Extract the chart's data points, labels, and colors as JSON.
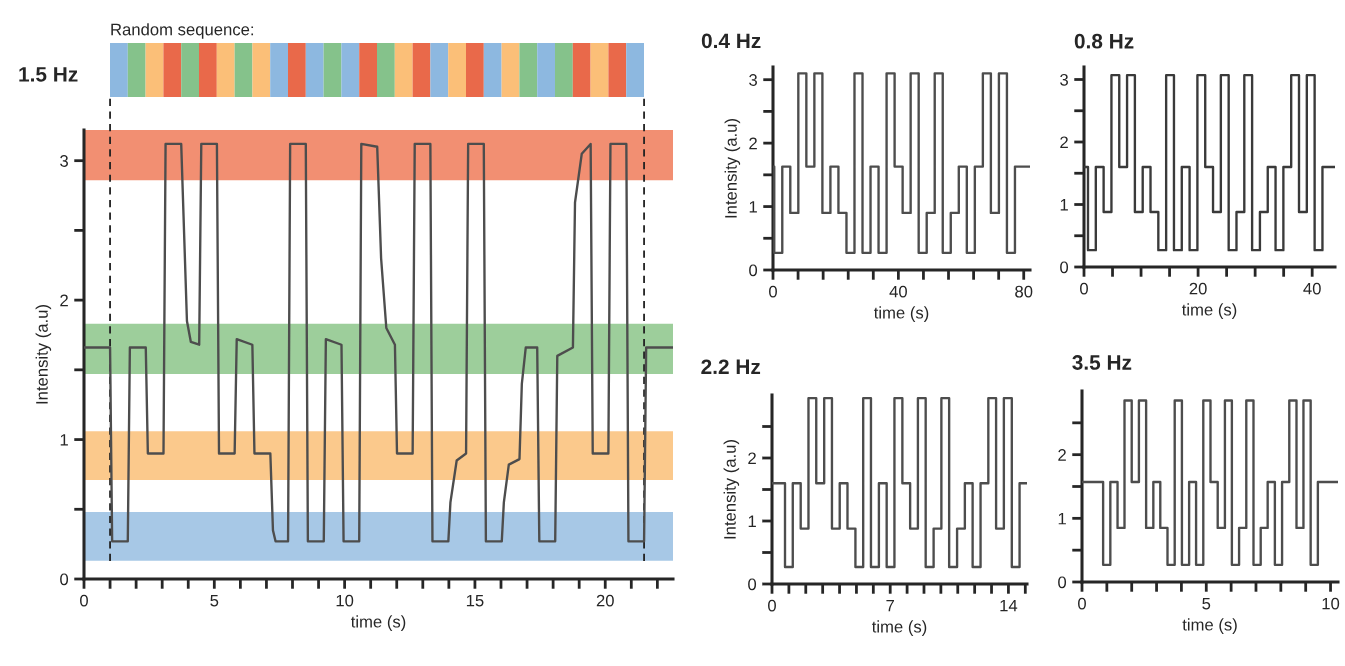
{
  "chart_data": [
    {
      "type": "line",
      "title": "1.5 Hz",
      "xlabel": "time (s)",
      "ylabel": "Intensity (a.u)",
      "annotations": [
        "Random sequence:"
      ],
      "xlim": [
        0,
        22.6
      ],
      "ylim": [
        0,
        3.22
      ],
      "xticks": [
        0,
        {
          "value": 1,
          "label": null
        },
        {
          "value": 2,
          "label": null
        },
        {
          "value": 3,
          "label": null
        },
        {
          "value": 4,
          "label": null
        },
        5,
        {
          "value": 6,
          "label": null
        },
        {
          "value": 7,
          "label": null
        },
        {
          "value": 8,
          "label": null
        },
        {
          "value": 9,
          "label": null
        },
        10,
        {
          "value": 11,
          "label": null
        },
        {
          "value": 12,
          "label": null
        },
        {
          "value": 13,
          "label": null
        },
        {
          "value": 14,
          "label": null
        },
        15,
        {
          "value": 16,
          "label": null
        },
        {
          "value": 17,
          "label": null
        },
        {
          "value": 18,
          "label": null
        },
        {
          "value": 19,
          "label": null
        },
        20,
        {
          "value": 21,
          "label": null
        },
        {
          "value": 22,
          "label": null
        }
      ],
      "yticks": [
        0,
        {
          "value": 0.5,
          "label": null
        },
        1,
        {
          "value": 1.5,
          "label": null
        },
        2,
        {
          "value": 2.5,
          "label": null
        },
        3
      ],
      "bands": [
        {
          "axis": "y",
          "from": 2.86,
          "to": 3.22,
          "color": "#f28f72"
        },
        {
          "axis": "y",
          "from": 1.47,
          "to": 1.83,
          "color": "#9dce9b"
        },
        {
          "axis": "y",
          "from": 0.71,
          "to": 1.06,
          "color": "#fbc98c"
        },
        {
          "axis": "y",
          "from": 0.13,
          "to": 0.48,
          "color": "#a7c8e6"
        }
      ],
      "ref_lines": [
        {
          "axis": "x",
          "value": 1.0,
          "color": "#222222",
          "line_style": "dashed"
        },
        {
          "axis": "x",
          "value": 21.49,
          "color": "#222222",
          "line_style": "dashed"
        }
      ],
      "series": [
        {
          "color": "#4d4d4d",
          "x": [
            0,
            1.0,
            1.08,
            1.68,
            1.76,
            2.37,
            2.45,
            3.05,
            3.13,
            3.73,
            3.82,
            3.95,
            4.1,
            4.42,
            4.5,
            5.1,
            5.18,
            5.78,
            5.86,
            6.46,
            6.54,
            7.15,
            7.25,
            7.35,
            7.83,
            7.91,
            8.51,
            8.59,
            9.2,
            9.28,
            9.88,
            9.96,
            10.56,
            10.64,
            11.25,
            11.4,
            11.6,
            11.93,
            12.01,
            12.61,
            12.69,
            13.29,
            13.37,
            13.98,
            14.06,
            14.3,
            14.66,
            14.74,
            15.34,
            15.42,
            16.03,
            16.11,
            16.3,
            16.71,
            16.8,
            16.95,
            17.39,
            17.47,
            18.08,
            18.16,
            18.76,
            18.84,
            19.1,
            19.44,
            19.52,
            20.12,
            20.2,
            20.81,
            20.89,
            21.49,
            21.57,
            22.6
          ],
          "values": [
            1.66,
            1.66,
            0.27,
            0.27,
            1.66,
            1.66,
            0.9,
            0.9,
            3.12,
            3.12,
            2.6,
            1.85,
            1.7,
            1.68,
            3.12,
            3.12,
            0.9,
            0.9,
            1.72,
            1.68,
            0.9,
            0.9,
            0.35,
            0.27,
            0.27,
            3.12,
            3.12,
            0.27,
            0.27,
            1.72,
            1.68,
            0.27,
            0.27,
            3.12,
            3.1,
            2.3,
            1.8,
            1.68,
            0.9,
            0.9,
            3.12,
            3.12,
            0.27,
            0.27,
            0.55,
            0.85,
            0.9,
            3.12,
            3.12,
            0.27,
            0.27,
            0.55,
            0.82,
            0.86,
            1.4,
            1.66,
            1.66,
            0.27,
            0.27,
            1.6,
            1.66,
            2.7,
            3.05,
            3.12,
            0.9,
            0.9,
            3.12,
            3.12,
            0.27,
            0.27,
            1.66,
            1.66
          ]
        }
      ]
    },
    {
      "type": "step",
      "title": "0.4 Hz",
      "xlabel": "time (s)",
      "ylabel": "Intensity (a.u)",
      "xlim": [
        0,
        82
      ],
      "ylim": [
        0,
        3.2
      ],
      "xticks": [
        0,
        {
          "value": 8,
          "label": null
        },
        {
          "value": 16,
          "label": null
        },
        {
          "value": 24,
          "label": null
        },
        {
          "value": 32,
          "label": null
        },
        40,
        {
          "value": 48,
          "label": null
        },
        {
          "value": 56,
          "label": null
        },
        {
          "value": 64,
          "label": null
        },
        {
          "value": 72,
          "label": null
        },
        80
      ],
      "yticks": [
        0,
        {
          "value": 0.5,
          "label": null
        },
        1,
        {
          "value": 1.5,
          "label": null
        },
        2,
        {
          "value": 2.5,
          "label": null
        },
        3
      ],
      "series": [
        {
          "color": "#4d4d4d",
          "x": [
            0,
            0.4,
            2.96,
            5.52,
            8.08,
            10.64,
            13.2,
            15.76,
            18.32,
            20.88,
            23.44,
            26.0,
            28.56,
            31.12,
            33.68,
            36.24,
            38.8,
            41.36,
            43.92,
            46.48,
            49.04,
            51.6,
            54.16,
            56.72,
            59.28,
            61.84,
            64.4,
            66.96,
            69.52,
            72.08,
            74.64,
            77.2,
            82
          ],
          "values": [
            1.63,
            0.27,
            1.63,
            0.9,
            3.1,
            1.63,
            3.1,
            0.9,
            1.63,
            0.9,
            0.27,
            3.1,
            0.27,
            1.63,
            0.27,
            3.1,
            1.63,
            0.9,
            3.1,
            0.27,
            0.9,
            3.1,
            0.27,
            0.9,
            1.63,
            0.27,
            1.63,
            3.1,
            0.9,
            3.1,
            0.27,
            1.63,
            1.63
          ]
        }
      ]
    },
    {
      "type": "step",
      "title": "0.8 Hz",
      "xlabel": "time (s)",
      "xlim": [
        0,
        44
      ],
      "ylim": [
        0,
        3.2
      ],
      "xticks": [
        0,
        {
          "value": 5,
          "label": null
        },
        {
          "value": 10,
          "label": null
        },
        {
          "value": 15,
          "label": null
        },
        20,
        {
          "value": 25,
          "label": null
        },
        {
          "value": 30,
          "label": null
        },
        {
          "value": 35,
          "label": null
        },
        40
      ],
      "yticks": [
        0,
        {
          "value": 0.5,
          "label": null
        },
        1,
        {
          "value": 1.5,
          "label": null
        },
        2,
        {
          "value": 2.5,
          "label": null
        },
        3
      ],
      "series": [
        {
          "color": "#3a3a3a",
          "x": [
            0,
            0.7,
            2.07,
            3.44,
            4.81,
            6.18,
            7.55,
            8.92,
            10.29,
            11.66,
            13.03,
            14.4,
            15.77,
            17.14,
            18.51,
            19.88,
            21.25,
            22.62,
            23.99,
            25.36,
            26.73,
            28.1,
            29.47,
            30.84,
            32.21,
            33.58,
            34.95,
            36.32,
            37.69,
            39.06,
            40.43,
            41.8,
            44
          ],
          "values": [
            1.6,
            0.27,
            1.6,
            0.88,
            3.07,
            1.6,
            3.07,
            0.88,
            1.6,
            0.88,
            0.27,
            3.07,
            0.27,
            1.6,
            0.27,
            3.07,
            1.6,
            0.88,
            3.07,
            0.27,
            0.88,
            3.07,
            0.27,
            0.88,
            1.6,
            0.27,
            1.6,
            3.07,
            0.88,
            3.07,
            0.27,
            1.6,
            1.6
          ]
        }
      ]
    },
    {
      "type": "step",
      "title": "2.2 Hz",
      "xlabel": "time (s)",
      "ylabel": "Intensity (a.u)",
      "xlim": [
        0,
        15.1
      ],
      "ylim": [
        0,
        3.0
      ],
      "xticks": [
        0,
        {
          "value": 1,
          "label": null
        },
        {
          "value": 2,
          "label": null
        },
        {
          "value": 3,
          "label": null
        },
        {
          "value": 4,
          "label": null
        },
        {
          "value": 5,
          "label": null
        },
        {
          "value": 6,
          "label": null
        },
        7,
        {
          "value": 8,
          "label": null
        },
        {
          "value": 9,
          "label": null
        },
        {
          "value": 10,
          "label": null
        },
        {
          "value": 11,
          "label": null
        },
        {
          "value": 12,
          "label": null
        },
        {
          "value": 13,
          "label": null
        },
        14,
        {
          "value": 15,
          "label": null
        }
      ],
      "yticks": [
        0,
        {
          "value": 0.5,
          "label": null
        },
        1,
        {
          "value": 1.5,
          "label": null
        },
        2,
        {
          "value": 2.5,
          "label": null
        }
      ],
      "series": [
        {
          "color": "#4d4d4d",
          "x": [
            0,
            0.77,
            1.23,
            1.7,
            2.16,
            2.62,
            3.09,
            3.55,
            4.01,
            4.47,
            4.94,
            5.4,
            5.86,
            6.33,
            6.79,
            7.25,
            7.72,
            8.18,
            8.64,
            9.1,
            9.57,
            10.03,
            10.49,
            10.96,
            11.42,
            11.88,
            12.35,
            12.81,
            13.27,
            13.73,
            14.2,
            14.66,
            15.1
          ],
          "values": [
            1.6,
            0.27,
            1.6,
            0.88,
            2.95,
            1.6,
            2.95,
            0.88,
            1.6,
            0.88,
            0.27,
            2.95,
            0.27,
            1.6,
            0.27,
            2.95,
            1.6,
            0.88,
            2.95,
            0.27,
            0.88,
            2.95,
            0.27,
            0.88,
            1.6,
            0.27,
            1.6,
            2.95,
            0.88,
            2.95,
            0.27,
            1.6,
            1.6
          ]
        }
      ]
    },
    {
      "type": "step",
      "title": "3.5 Hz",
      "xlabel": "time (s)",
      "xlim": [
        0,
        10.3
      ],
      "ylim": [
        0,
        3.0
      ],
      "xticks": [
        0,
        {
          "value": 1,
          "label": null
        },
        {
          "value": 2,
          "label": null
        },
        {
          "value": 3,
          "label": null
        },
        {
          "value": 4,
          "label": null
        },
        5,
        {
          "value": 6,
          "label": null
        },
        {
          "value": 7,
          "label": null
        },
        {
          "value": 8,
          "label": null
        },
        {
          "value": 9,
          "label": null
        },
        10
      ],
      "yticks": [
        0,
        {
          "value": 0.5,
          "label": null
        },
        1,
        {
          "value": 1.5,
          "label": null
        },
        2,
        {
          "value": 2.5,
          "label": null
        }
      ],
      "series": [
        {
          "color": "#4d4d4d",
          "x": [
            0,
            0.85,
            1.14,
            1.43,
            1.71,
            2.0,
            2.29,
            2.58,
            2.87,
            3.15,
            3.44,
            3.73,
            4.02,
            4.31,
            4.59,
            4.88,
            5.17,
            5.46,
            5.75,
            6.03,
            6.32,
            6.61,
            6.9,
            7.19,
            7.47,
            7.76,
            8.05,
            8.34,
            8.63,
            8.91,
            9.2,
            9.49,
            10.3
          ],
          "values": [
            1.57,
            0.27,
            1.57,
            0.85,
            2.85,
            1.57,
            2.85,
            0.85,
            1.57,
            0.85,
            0.27,
            2.85,
            0.27,
            1.57,
            0.27,
            2.85,
            1.57,
            0.85,
            2.85,
            0.27,
            0.85,
            2.85,
            0.27,
            0.85,
            1.57,
            0.27,
            1.57,
            2.85,
            0.85,
            2.85,
            0.27,
            1.57,
            1.57
          ]
        }
      ]
    }
  ]
}
